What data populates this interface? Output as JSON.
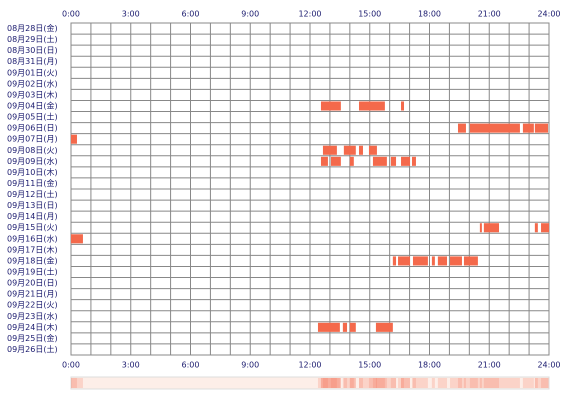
{
  "chart_data": {
    "type": "timeline",
    "categories": [
      "08月28日(金)",
      "08月29日(土)",
      "08月30日(日)",
      "08月31日(月)",
      "09月01日(火)",
      "09月02日(水)",
      "09月03日(木)",
      "09月04日(金)",
      "09月05日(土)",
      "09月06日(日)",
      "09月07日(月)",
      "09月08日(火)",
      "09月09日(水)",
      "09月10日(木)",
      "09月11日(金)",
      "09月12日(土)",
      "09月13日(日)",
      "09月14日(月)",
      "09月15日(火)",
      "09月16日(水)",
      "09月17日(木)",
      "09月18日(金)",
      "09月19日(土)",
      "09月20日(日)",
      "09月21日(月)",
      "09月22日(火)",
      "09月23日(水)",
      "09月24日(木)",
      "09月25日(金)",
      "09月26日(土)"
    ],
    "segments": [
      [],
      [],
      [],
      [],
      [],
      [],
      [],
      [
        [
          12.55,
          13.55
        ],
        [
          14.46,
          15.76
        ],
        [
          16.57,
          16.72
        ]
      ],
      [],
      [
        [
          19.43,
          19.83
        ],
        [
          20.03,
          22.54
        ],
        [
          22.69,
          23.24
        ],
        [
          23.29,
          23.95
        ]
      ],
      [
        [
          0,
          0.3
        ]
      ],
      [
        [
          12.65,
          13.35
        ],
        [
          13.7,
          14.3
        ],
        [
          14.46,
          14.66
        ],
        [
          14.96,
          15.36
        ]
      ],
      [
        [
          12.55,
          12.9
        ],
        [
          13.05,
          13.55
        ],
        [
          14.0,
          14.2
        ],
        [
          15.16,
          15.86
        ],
        [
          16.06,
          16.32
        ],
        [
          16.57,
          17.02
        ],
        [
          17.12,
          17.32
        ]
      ],
      [],
      [],
      [],
      [],
      [],
      [
        [
          20.53,
          20.63
        ],
        [
          20.73,
          21.49
        ],
        [
          23.29,
          23.44
        ],
        [
          23.6,
          24
        ]
      ],
      [
        [
          0,
          0.6
        ]
      ],
      [],
      [
        [
          16.16,
          16.32
        ],
        [
          16.42,
          17.02
        ],
        [
          17.17,
          17.92
        ],
        [
          18.12,
          18.27
        ],
        [
          18.42,
          18.88
        ],
        [
          19.03,
          19.63
        ],
        [
          19.73,
          20.43
        ]
      ],
      [],
      [],
      [],
      [],
      [],
      [
        [
          12.4,
          13.5
        ],
        [
          13.65,
          13.86
        ],
        [
          14.0,
          14.3
        ],
        [
          15.31,
          16.16
        ]
      ],
      [],
      []
    ],
    "color": "#f4694b",
    "xlim": [
      0,
      24
    ],
    "xticks": [
      {
        "value": 0,
        "label": "0:00"
      },
      {
        "value": 3,
        "label": "3:00"
      },
      {
        "value": 6,
        "label": "6:00"
      },
      {
        "value": 9,
        "label": "9:00"
      },
      {
        "value": 12,
        "label": "12:00"
      },
      {
        "value": 15,
        "label": "15:00"
      },
      {
        "value": 18,
        "label": "18:00"
      },
      {
        "value": 21,
        "label": "21:00"
      },
      {
        "value": 24,
        "label": "24:00"
      }
    ],
    "grid": true
  }
}
